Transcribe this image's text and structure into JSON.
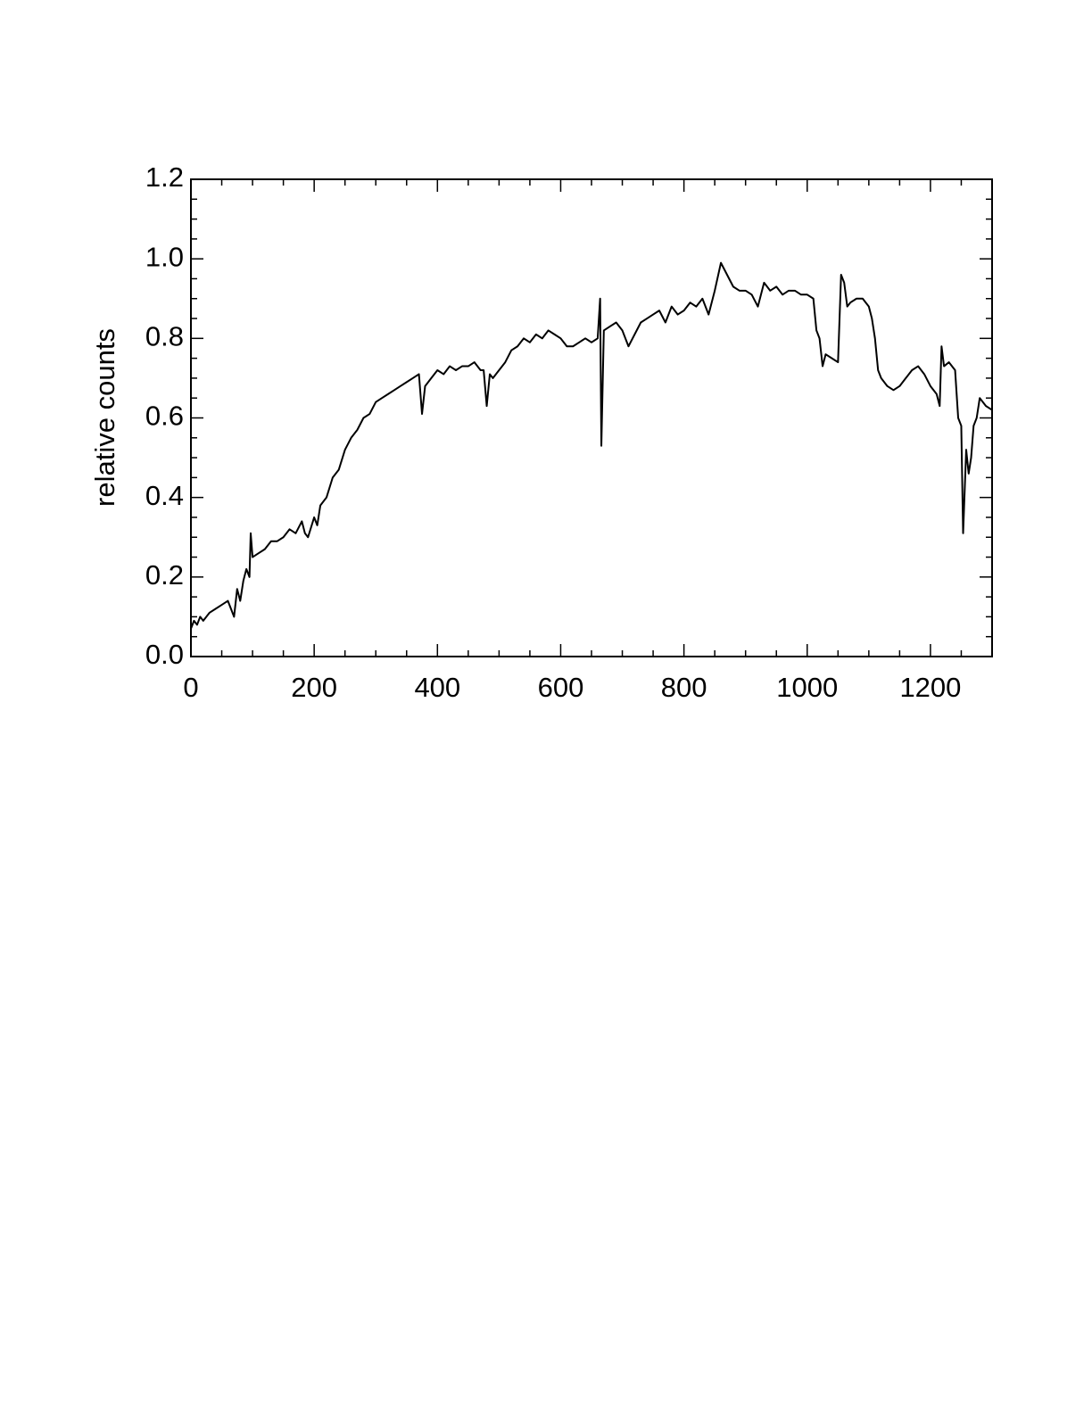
{
  "chart_data": {
    "type": "line",
    "ylabel": "relative counts",
    "xlim": [
      0,
      1300
    ],
    "ylim": [
      0,
      1.2
    ],
    "xticks": [
      0,
      200,
      400,
      600,
      800,
      1000,
      1200
    ],
    "yticks": [
      {
        "value": 0,
        "label": "0.0"
      },
      0.2,
      0.4,
      0.6,
      0.8,
      {
        "value": 1,
        "label": "1.0"
      },
      1.2
    ],
    "xminorticks": [
      50,
      100,
      150,
      250,
      300,
      350,
      450,
      500,
      550,
      650,
      700,
      750,
      850,
      900,
      950,
      1050,
      1100,
      1150,
      1250
    ],
    "yminorticks": [
      0.05,
      0.1,
      0.15,
      0.25,
      0.3,
      0.35,
      0.45,
      0.5,
      0.55,
      0.65,
      0.7,
      0.75,
      0.85,
      0.9,
      0.95,
      1.05,
      1.1,
      1.15
    ],
    "series": [
      {
        "color": "#000000",
        "x": [
          0,
          5,
          10,
          15,
          20,
          30,
          40,
          50,
          60,
          70,
          75,
          80,
          85,
          90,
          95,
          97,
          100,
          110,
          120,
          130,
          140,
          150,
          160,
          170,
          180,
          185,
          190,
          200,
          205,
          210,
          220,
          230,
          240,
          250,
          260,
          270,
          280,
          290,
          300,
          310,
          320,
          330,
          340,
          350,
          360,
          370,
          375,
          380,
          390,
          400,
          410,
          420,
          430,
          440,
          450,
          460,
          470,
          475,
          480,
          485,
          490,
          500,
          510,
          520,
          530,
          540,
          550,
          560,
          570,
          580,
          590,
          600,
          610,
          620,
          630,
          640,
          650,
          660,
          664,
          666,
          670,
          680,
          690,
          700,
          710,
          720,
          730,
          740,
          750,
          760,
          770,
          780,
          790,
          800,
          810,
          820,
          830,
          840,
          850,
          860,
          870,
          880,
          890,
          900,
          910,
          920,
          930,
          940,
          950,
          960,
          970,
          980,
          990,
          1000,
          1010,
          1015,
          1020,
          1025,
          1030,
          1040,
          1050,
          1055,
          1060,
          1065,
          1070,
          1080,
          1090,
          1100,
          1105,
          1110,
          1115,
          1120,
          1130,
          1140,
          1150,
          1160,
          1170,
          1180,
          1190,
          1200,
          1210,
          1215,
          1218,
          1222,
          1230,
          1240,
          1245,
          1250,
          1253,
          1258,
          1262,
          1266,
          1270,
          1275,
          1280,
          1290,
          1300
        ],
        "values": [
          0.07,
          0.09,
          0.08,
          0.1,
          0.09,
          0.11,
          0.12,
          0.13,
          0.14,
          0.1,
          0.17,
          0.14,
          0.19,
          0.22,
          0.2,
          0.31,
          0.25,
          0.26,
          0.27,
          0.29,
          0.29,
          0.3,
          0.32,
          0.31,
          0.34,
          0.31,
          0.3,
          0.35,
          0.33,
          0.38,
          0.4,
          0.45,
          0.47,
          0.52,
          0.55,
          0.57,
          0.6,
          0.61,
          0.64,
          0.65,
          0.66,
          0.67,
          0.68,
          0.69,
          0.7,
          0.71,
          0.61,
          0.68,
          0.7,
          0.72,
          0.71,
          0.73,
          0.72,
          0.73,
          0.73,
          0.74,
          0.72,
          0.72,
          0.63,
          0.71,
          0.7,
          0.72,
          0.74,
          0.77,
          0.78,
          0.8,
          0.79,
          0.81,
          0.8,
          0.82,
          0.81,
          0.8,
          0.78,
          0.78,
          0.79,
          0.8,
          0.79,
          0.8,
          0.9,
          0.53,
          0.82,
          0.83,
          0.84,
          0.82,
          0.78,
          0.81,
          0.84,
          0.85,
          0.86,
          0.87,
          0.84,
          0.88,
          0.86,
          0.87,
          0.89,
          0.88,
          0.9,
          0.86,
          0.92,
          0.99,
          0.96,
          0.93,
          0.92,
          0.92,
          0.91,
          0.88,
          0.94,
          0.92,
          0.93,
          0.91,
          0.92,
          0.92,
          0.91,
          0.91,
          0.9,
          0.82,
          0.8,
          0.73,
          0.76,
          0.75,
          0.74,
          0.96,
          0.94,
          0.88,
          0.89,
          0.9,
          0.9,
          0.88,
          0.85,
          0.8,
          0.72,
          0.7,
          0.68,
          0.67,
          0.68,
          0.7,
          0.72,
          0.73,
          0.71,
          0.68,
          0.66,
          0.63,
          0.78,
          0.73,
          0.74,
          0.72,
          0.6,
          0.58,
          0.31,
          0.52,
          0.46,
          0.5,
          0.58,
          0.6,
          0.65,
          0.63,
          0.62
        ]
      }
    ]
  }
}
